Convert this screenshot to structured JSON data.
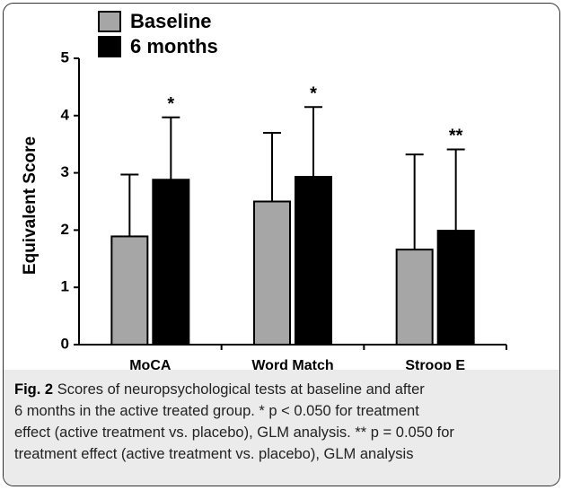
{
  "chart_data": {
    "type": "bar",
    "y_label": "Equivalent Score",
    "categories": [
      "MoCA",
      "Word Match",
      "Stroop E"
    ],
    "series": [
      {
        "name": "Baseline",
        "color": "#a6a6a6",
        "values": [
          1.89,
          2.5,
          1.66
        ],
        "errors": [
          1.08,
          1.2,
          1.66
        ]
      },
      {
        "name": "6 months",
        "color": "#000000",
        "values": [
          2.88,
          2.93,
          1.99
        ],
        "errors": [
          1.09,
          1.22,
          1.42
        ],
        "annotations": [
          "*",
          "*",
          "**"
        ]
      }
    ],
    "ylim": [
      0,
      5
    ],
    "yticks": [
      0,
      1,
      2,
      3,
      4,
      5
    ],
    "grid": false,
    "legend": "top-left"
  },
  "caption": {
    "label": "Fig. 2",
    "lines": [
      "Scores of neuropsychological tests at baseline and after",
      "6 months in the active treated group. * p < 0.050 for treatment",
      "effect (active treatment vs. placebo), GLM analysis. ** p = 0.050 for",
      "treatment effect (active treatment vs. placebo), GLM analysis"
    ]
  }
}
